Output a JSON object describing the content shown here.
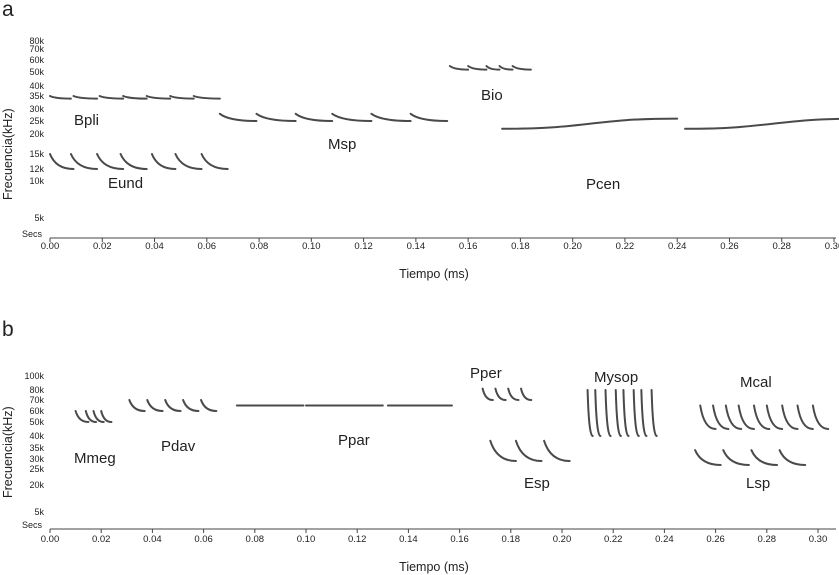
{
  "chart_data": [
    {
      "panel": "a",
      "type": "scatter",
      "xlabel": "Tiempo (ms)",
      "ylabel": "Frecuencia(kHz)",
      "xlim": [
        0.0,
        0.31
      ],
      "xticks": [
        0.0,
        0.02,
        0.04,
        0.06,
        0.08,
        0.1,
        0.12,
        0.14,
        0.16,
        0.18,
        0.2,
        0.22,
        0.24,
        0.26,
        0.28,
        0.3
      ],
      "xtick_labels": [
        "0.00",
        "0.02",
        "0.04",
        "0.06",
        "0.08",
        "0.10",
        "0.12",
        "0.14",
        "0.16",
        "0.18",
        "0.20",
        "0.22",
        "0.24",
        "0.26",
        "0.28",
        "0.30"
      ],
      "yticks": [
        5,
        10,
        12,
        15,
        20,
        25,
        30,
        35,
        40,
        50,
        60,
        70,
        80
      ],
      "ytick_labels": [
        "5k",
        "10k",
        "12k",
        "15k",
        "20k",
        "25k",
        "30k",
        "35k",
        "40k",
        "50k",
        "60k",
        "70k",
        "80k"
      ],
      "ycorner_label": "Secs",
      "yscale": "nonlinear",
      "grid": false,
      "species": [
        {
          "name": "Bpli",
          "calls": [
            {
              "t0": 0.0,
              "t1": 0.008,
              "f0": 35,
              "f1": 34
            },
            {
              "t0": 0.009,
              "t1": 0.018,
              "f0": 35,
              "f1": 34
            },
            {
              "t0": 0.019,
              "t1": 0.028,
              "f0": 35,
              "f1": 34
            },
            {
              "t0": 0.028,
              "t1": 0.037,
              "f0": 35,
              "f1": 34
            },
            {
              "t0": 0.037,
              "t1": 0.046,
              "f0": 35,
              "f1": 34
            },
            {
              "t0": 0.046,
              "t1": 0.055,
              "f0": 35,
              "f1": 34
            },
            {
              "t0": 0.055,
              "t1": 0.065,
              "f0": 35,
              "f1": 34
            }
          ]
        },
        {
          "name": "Eund",
          "calls": [
            {
              "t0": 0.0,
              "t1": 0.009,
              "f0": 15,
              "f1": 12
            },
            {
              "t0": 0.008,
              "t1": 0.018,
              "f0": 15,
              "f1": 12
            },
            {
              "t0": 0.018,
              "t1": 0.028,
              "f0": 15,
              "f1": 12
            },
            {
              "t0": 0.027,
              "t1": 0.037,
              "f0": 15,
              "f1": 12
            },
            {
              "t0": 0.039,
              "t1": 0.048,
              "f0": 15,
              "f1": 12
            },
            {
              "t0": 0.048,
              "t1": 0.058,
              "f0": 15,
              "f1": 12
            },
            {
              "t0": 0.058,
              "t1": 0.068,
              "f0": 15,
              "f1": 12
            }
          ]
        },
        {
          "name": "Msp",
          "calls": [
            {
              "t0": 0.065,
              "t1": 0.079,
              "f0": 28,
              "f1": 25
            },
            {
              "t0": 0.079,
              "t1": 0.094,
              "f0": 28,
              "f1": 25
            },
            {
              "t0": 0.094,
              "t1": 0.108,
              "f0": 28,
              "f1": 25
            },
            {
              "t0": 0.108,
              "t1": 0.123,
              "f0": 28,
              "f1": 25
            },
            {
              "t0": 0.123,
              "t1": 0.138,
              "f0": 28,
              "f1": 25
            },
            {
              "t0": 0.138,
              "t1": 0.152,
              "f0": 28,
              "f1": 25
            }
          ]
        },
        {
          "name": "Bio",
          "calls": [
            {
              "t0": 0.153,
              "t1": 0.16,
              "f0": 55,
              "f1": 52
            },
            {
              "t0": 0.16,
              "t1": 0.167,
              "f0": 55,
              "f1": 52
            },
            {
              "t0": 0.167,
              "t1": 0.172,
              "f0": 55,
              "f1": 52
            },
            {
              "t0": 0.172,
              "t1": 0.177,
              "f0": 55,
              "f1": 52
            },
            {
              "t0": 0.177,
              "t1": 0.184,
              "f0": 55,
              "f1": 52
            }
          ]
        },
        {
          "name": "Pcen",
          "calls": [
            {
              "t0": 0.173,
              "t1": 0.24,
              "f0": 22,
              "f1": 26
            },
            {
              "t0": 0.243,
              "t1": 0.31,
              "f0": 22,
              "f1": 26
            }
          ]
        }
      ],
      "labels": [
        "Bpli",
        "Eund",
        "Msp",
        "Bio",
        "Pcen"
      ]
    },
    {
      "panel": "b",
      "type": "scatter",
      "xlabel": "Tiempo (ms)",
      "ylabel": "Frecuencia(kHz)",
      "xlim": [
        0.0,
        0.31
      ],
      "xticks": [
        0.0,
        0.02,
        0.04,
        0.06,
        0.08,
        0.1,
        0.12,
        0.14,
        0.16,
        0.18,
        0.2,
        0.22,
        0.24,
        0.26,
        0.28,
        0.3
      ],
      "xtick_labels": [
        "0.00",
        "0.02",
        "0.04",
        "0.06",
        "0.08",
        "0.10",
        "0.12",
        "0.14",
        "0.16",
        "0.18",
        "0.20",
        "0.22",
        "0.24",
        "0.26",
        "0.28",
        "0.30"
      ],
      "yticks": [
        5,
        20,
        25,
        30,
        35,
        40,
        50,
        60,
        70,
        80,
        100
      ],
      "ytick_labels": [
        "5k",
        "20k",
        "25k",
        "30k",
        "35k",
        "40k",
        "50k",
        "60k",
        "70k",
        "80k",
        "100k"
      ],
      "ycorner_label": "Secs",
      "yscale": "nonlinear",
      "grid": false,
      "species": [
        {
          "name": "Mmeg",
          "calls": [
            {
              "t0": 0.01,
              "t1": 0.015,
              "f0": 60,
              "f1": 50
            },
            {
              "t0": 0.014,
              "t1": 0.018,
              "f0": 60,
              "f1": 50
            },
            {
              "t0": 0.017,
              "t1": 0.021,
              "f0": 60,
              "f1": 50
            },
            {
              "t0": 0.02,
              "t1": 0.024,
              "f0": 60,
              "f1": 50
            }
          ]
        },
        {
          "name": "Pdav",
          "calls": [
            {
              "t0": 0.031,
              "t1": 0.037,
              "f0": 70,
              "f1": 60
            },
            {
              "t0": 0.038,
              "t1": 0.044,
              "f0": 70,
              "f1": 60
            },
            {
              "t0": 0.045,
              "t1": 0.051,
              "f0": 70,
              "f1": 60
            },
            {
              "t0": 0.052,
              "t1": 0.058,
              "f0": 70,
              "f1": 60
            },
            {
              "t0": 0.059,
              "t1": 0.065,
              "f0": 70,
              "f1": 60
            }
          ]
        },
        {
          "name": "Ppar",
          "calls": [
            {
              "t0": 0.073,
              "t1": 0.099,
              "f0": 65,
              "f1": 65
            },
            {
              "t0": 0.1,
              "t1": 0.13,
              "f0": 65,
              "f1": 65
            },
            {
              "t0": 0.132,
              "t1": 0.157,
              "f0": 65,
              "f1": 65
            }
          ]
        },
        {
          "name": "Pper",
          "calls": [
            {
              "t0": 0.169,
              "t1": 0.173,
              "f0": 82,
              "f1": 70
            },
            {
              "t0": 0.174,
              "t1": 0.178,
              "f0": 82,
              "f1": 70
            },
            {
              "t0": 0.179,
              "t1": 0.183,
              "f0": 82,
              "f1": 70
            },
            {
              "t0": 0.184,
              "t1": 0.188,
              "f0": 82,
              "f1": 70
            }
          ]
        },
        {
          "name": "Esp",
          "calls": [
            {
              "t0": 0.172,
              "t1": 0.182,
              "f0": 38,
              "f1": 29
            },
            {
              "t0": 0.182,
              "t1": 0.192,
              "f0": 38,
              "f1": 29
            },
            {
              "t0": 0.193,
              "t1": 0.203,
              "f0": 38,
              "f1": 29
            }
          ]
        },
        {
          "name": "Mysop",
          "calls": [
            {
              "t0": 0.21,
              "t1": 0.212,
              "f0": 80,
              "f1": 40
            },
            {
              "t0": 0.213,
              "t1": 0.215,
              "f0": 80,
              "f1": 40
            },
            {
              "t0": 0.217,
              "t1": 0.219,
              "f0": 80,
              "f1": 40
            },
            {
              "t0": 0.221,
              "t1": 0.223,
              "f0": 80,
              "f1": 40
            },
            {
              "t0": 0.224,
              "t1": 0.226,
              "f0": 80,
              "f1": 40
            },
            {
              "t0": 0.228,
              "t1": 0.23,
              "f0": 80,
              "f1": 40
            },
            {
              "t0": 0.231,
              "t1": 0.233,
              "f0": 80,
              "f1": 40
            },
            {
              "t0": 0.235,
              "t1": 0.237,
              "f0": 80,
              "f1": 40
            }
          ]
        },
        {
          "name": "Mcal",
          "calls": [
            {
              "t0": 0.254,
              "t1": 0.26,
              "f0": 65,
              "f1": 45
            },
            {
              "t0": 0.259,
              "t1": 0.265,
              "f0": 65,
              "f1": 45
            },
            {
              "t0": 0.264,
              "t1": 0.27,
              "f0": 65,
              "f1": 45
            },
            {
              "t0": 0.269,
              "t1": 0.275,
              "f0": 65,
              "f1": 45
            },
            {
              "t0": 0.275,
              "t1": 0.281,
              "f0": 65,
              "f1": 45
            },
            {
              "t0": 0.28,
              "t1": 0.286,
              "f0": 65,
              "f1": 45
            },
            {
              "t0": 0.286,
              "t1": 0.292,
              "f0": 65,
              "f1": 45
            },
            {
              "t0": 0.292,
              "t1": 0.298,
              "f0": 65,
              "f1": 45
            },
            {
              "t0": 0.298,
              "t1": 0.304,
              "f0": 65,
              "f1": 45
            }
          ]
        },
        {
          "name": "Lsp",
          "calls": [
            {
              "t0": 0.252,
              "t1": 0.262,
              "f0": 34,
              "f1": 27
            },
            {
              "t0": 0.263,
              "t1": 0.273,
              "f0": 34,
              "f1": 27
            },
            {
              "t0": 0.274,
              "t1": 0.284,
              "f0": 34,
              "f1": 27
            },
            {
              "t0": 0.285,
              "t1": 0.295,
              "f0": 34,
              "f1": 27
            }
          ]
        }
      ],
      "labels": [
        "Mmeg",
        "Pdav",
        "Ppar",
        "Pper",
        "Esp",
        "Mysop",
        "Mcal",
        "Lsp"
      ]
    }
  ]
}
